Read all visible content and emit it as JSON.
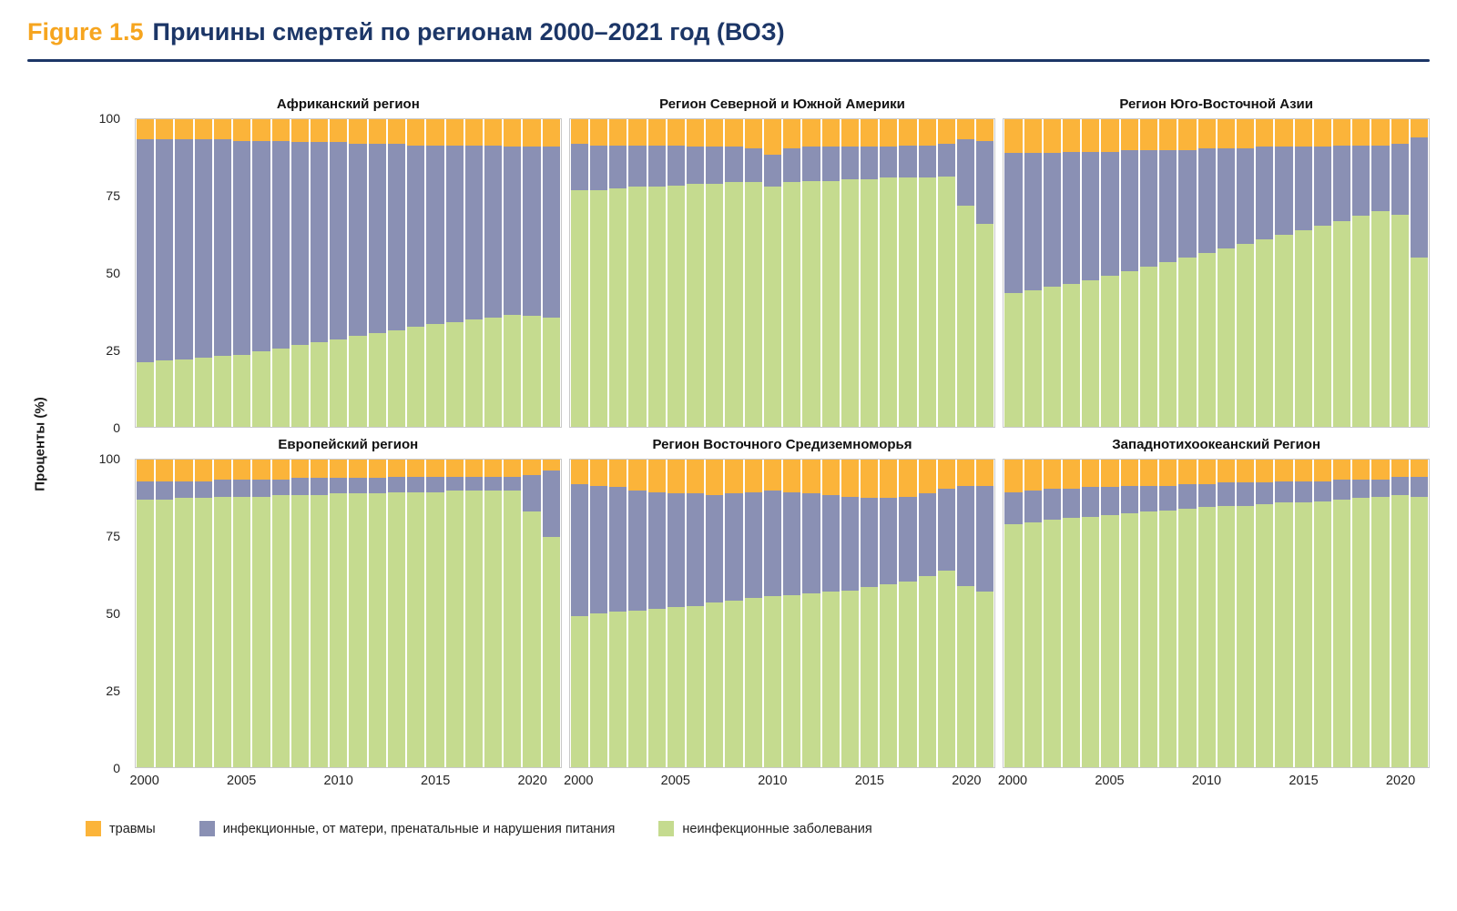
{
  "title": {
    "figure_label": "Figure 1.5",
    "text": "Причины смертей по регионам 2000–2021 год (ВОЗ)"
  },
  "colors": {
    "injuries": "#FBB43A",
    "infectious": "#8A90B4",
    "ncd": "#C5DB8F",
    "accent": "#1C3667",
    "figure_label": "#F6A51F"
  },
  "axis": {
    "y_label": "Проценты (%)",
    "y_ticks": [
      100,
      75,
      50,
      25,
      0
    ],
    "x_ticks": [
      2000,
      2005,
      2010,
      2015,
      2020
    ]
  },
  "legend": [
    {
      "key": "injuries",
      "label": "травмы"
    },
    {
      "key": "infectious",
      "label": "инфекционные, от матери, пренатальные и нарушения питания"
    },
    {
      "key": "ncd",
      "label": "неинфекционные заболевания"
    }
  ],
  "chart_data": {
    "type": "bar",
    "stacked": true,
    "ylim": [
      0,
      100
    ],
    "years": [
      2000,
      2001,
      2002,
      2003,
      2004,
      2005,
      2006,
      2007,
      2008,
      2009,
      2010,
      2011,
      2012,
      2013,
      2014,
      2015,
      2016,
      2017,
      2018,
      2019,
      2020,
      2021
    ],
    "panels": [
      {
        "title": "Африканский регион",
        "series": {
          "ncd": [
            21,
            21.5,
            22,
            22.5,
            23,
            23.5,
            24.5,
            25.5,
            26.5,
            27.5,
            28.5,
            29.5,
            30.5,
            31.5,
            32.5,
            33.5,
            34,
            35,
            35.5,
            36.5,
            36,
            35.5
          ],
          "infectious": [
            72.5,
            72,
            71.5,
            71,
            70.5,
            69.5,
            68.5,
            67.5,
            66,
            65,
            64,
            62.5,
            61.5,
            60.5,
            59,
            58,
            57.5,
            56.5,
            56,
            54.5,
            55,
            55.5
          ],
          "injuries": [
            6.5,
            6.5,
            6.5,
            6.5,
            6.5,
            7,
            7,
            7,
            7.5,
            7.5,
            7.5,
            8,
            8,
            8,
            8.5,
            8.5,
            8.5,
            8.5,
            8.5,
            9,
            9,
            9
          ]
        }
      },
      {
        "title": "Регион Северной и Южной Америки",
        "series": {
          "ncd": [
            77,
            77,
            77.5,
            78,
            78,
            78.5,
            79,
            79,
            79.5,
            79.5,
            78,
            79.5,
            80,
            80,
            80.5,
            80.5,
            81,
            81,
            81,
            81.5,
            72,
            66
          ],
          "infectious": [
            15,
            14.5,
            14,
            13.5,
            13.5,
            13,
            12,
            12,
            11.5,
            11,
            10.5,
            11,
            11,
            11,
            10.5,
            10.5,
            10,
            10.5,
            10.5,
            10.5,
            21.5,
            27
          ],
          "injuries": [
            8,
            8.5,
            8.5,
            8.5,
            8.5,
            8.5,
            9,
            9,
            9,
            9.5,
            11.5,
            9.5,
            9,
            9,
            9,
            9,
            9,
            8.5,
            8.5,
            8,
            6.5,
            7
          ]
        }
      },
      {
        "title": "Регион Юго-Восточной Азии",
        "series": {
          "ncd": [
            43.5,
            44.5,
            45.5,
            46.5,
            47.5,
            49,
            50.5,
            52,
            53.5,
            55,
            56.5,
            58,
            59.5,
            61,
            62.5,
            64,
            65.5,
            67,
            68.5,
            70,
            69,
            55
          ],
          "infectious": [
            45.5,
            44.5,
            43.5,
            43,
            42,
            40.5,
            39.5,
            38,
            36.5,
            35,
            34,
            32.5,
            31,
            30,
            28.5,
            27,
            25.5,
            24.5,
            23,
            21.5,
            23,
            39
          ],
          "injuries": [
            11,
            11,
            11,
            10.5,
            10.5,
            10.5,
            10,
            10,
            10,
            10,
            9.5,
            9.5,
            9.5,
            9,
            9,
            9,
            9,
            8.5,
            8.5,
            8.5,
            8,
            6
          ]
        }
      },
      {
        "title": "Европейский регион",
        "series": {
          "ncd": [
            87,
            87,
            87.5,
            87.5,
            88,
            88,
            88,
            88.5,
            88.5,
            88.5,
            89,
            89,
            89,
            89.5,
            89.5,
            89.5,
            90,
            90,
            90,
            90,
            83,
            75
          ],
          "infectious": [
            6,
            6,
            5.5,
            5.5,
            5.5,
            5.5,
            5.5,
            5,
            5.5,
            5.5,
            5,
            5,
            5,
            5,
            5,
            5,
            4.5,
            4.5,
            4.5,
            4.5,
            12,
            21.5
          ],
          "injuries": [
            7,
            7,
            7,
            7,
            6.5,
            6.5,
            6.5,
            6.5,
            6,
            6,
            6,
            6,
            6,
            5.5,
            5.5,
            5.5,
            5.5,
            5.5,
            5.5,
            5.5,
            5,
            3.5
          ]
        }
      },
      {
        "title": "Регион Восточного Средиземноморья",
        "series": {
          "ncd": [
            49,
            50,
            50.5,
            51,
            51.5,
            52,
            52.5,
            53.5,
            54,
            55,
            55.5,
            56,
            56.5,
            57,
            57.5,
            58.5,
            59.5,
            60.5,
            62,
            64,
            59,
            57
          ],
          "infectious": [
            43,
            41.5,
            40.5,
            39,
            38,
            37,
            36.5,
            35,
            35,
            34.5,
            34.5,
            33.5,
            32.5,
            31.5,
            30.5,
            29,
            28,
            27.5,
            27,
            26.5,
            32.5,
            34.5
          ],
          "injuries": [
            8,
            8.5,
            9,
            10,
            10.5,
            11,
            11,
            11.5,
            11,
            10.5,
            10,
            10.5,
            11,
            11.5,
            12,
            12.5,
            12.5,
            12,
            11,
            9.5,
            8.5,
            8.5
          ]
        }
      },
      {
        "title": "Западнотихоокеанский Регион",
        "series": {
          "ncd": [
            79,
            79.5,
            80.5,
            81,
            81.5,
            82,
            82.5,
            83,
            83.5,
            84,
            84.5,
            85,
            85,
            85.5,
            86,
            86,
            86.5,
            87,
            87.5,
            88,
            88.5,
            88
          ],
          "infectious": [
            10.5,
            10.5,
            10,
            9.5,
            9.5,
            9,
            9,
            8.5,
            8,
            8,
            7.5,
            7.5,
            7.5,
            7,
            7,
            7,
            6.5,
            6.5,
            6,
            5.5,
            6,
            6.5
          ],
          "injuries": [
            10.5,
            10,
            9.5,
            9.5,
            9,
            9,
            8.5,
            8.5,
            8.5,
            8,
            8,
            7.5,
            7.5,
            7.5,
            7,
            7,
            7,
            6.5,
            6.5,
            6.5,
            5.5,
            5.5
          ]
        }
      }
    ]
  }
}
